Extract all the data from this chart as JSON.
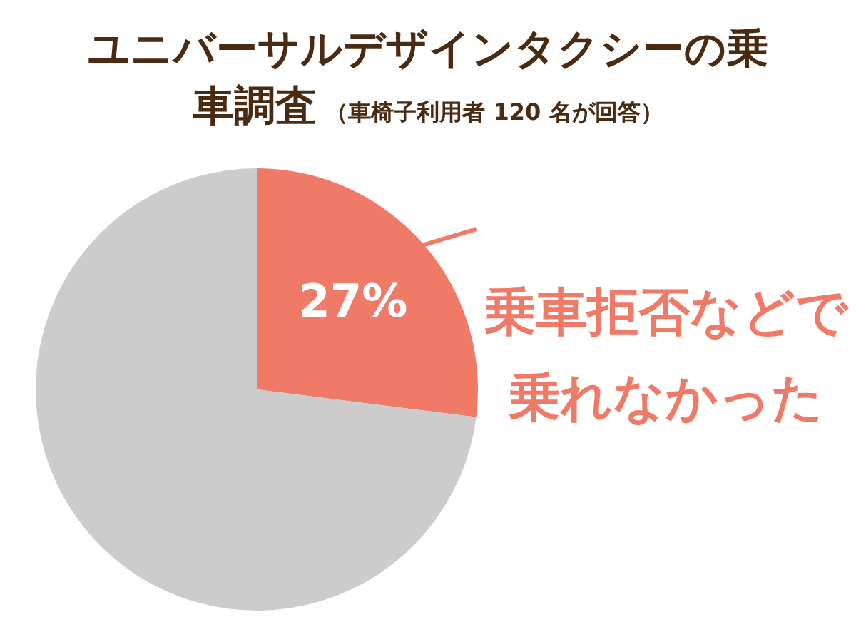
{
  "chart_data": {
    "type": "pie",
    "title": "ユニバーサルデザインタクシーの乗車調査",
    "subtitle": "（車椅子利用者 120 名が回答）",
    "categories": [
      "乗車拒否などで乗れなかった",
      null
    ],
    "values": [
      27,
      73
    ],
    "colors": [
      "#f07a68",
      "#cccccc"
    ],
    "value_labels": [
      "27%",
      null
    ],
    "legend": false
  }
}
